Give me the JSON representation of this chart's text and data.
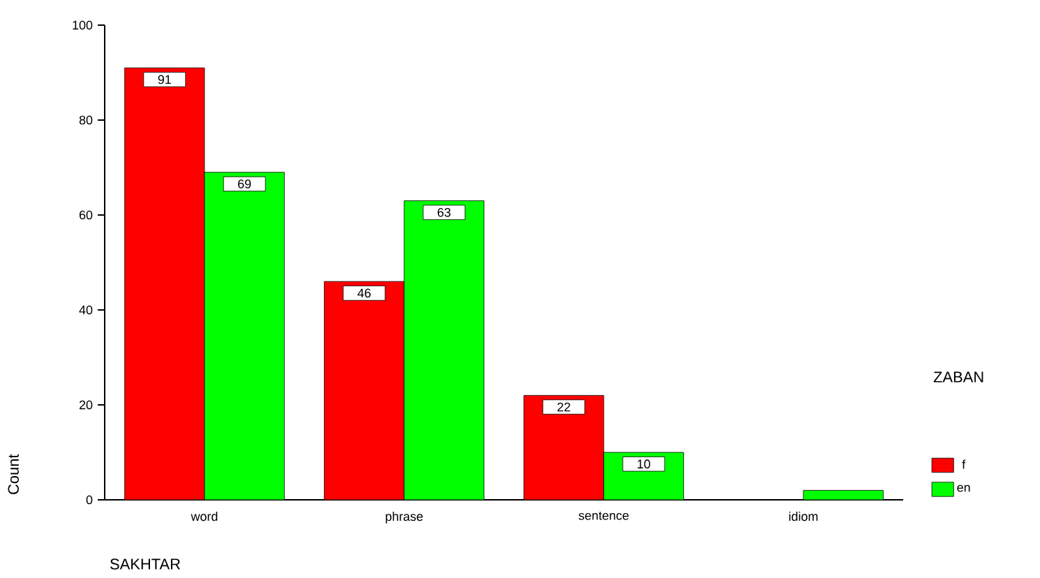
{
  "chart_data": {
    "type": "bar",
    "xlabel": "SAKHTAR",
    "ylabel": "Count",
    "legend_title": "ZABAN",
    "categories": [
      "word",
      "phrase",
      "sentence",
      "idiom"
    ],
    "series": [
      {
        "name": "f",
        "color": "#ff0000",
        "values": [
          91,
          46,
          22,
          null
        ],
        "value_labels": [
          "91",
          "46",
          "22",
          null
        ]
      },
      {
        "name": "en",
        "color": "#00ff00",
        "values": [
          69,
          63,
          10,
          2
        ],
        "value_labels": [
          "69",
          "63",
          "10",
          null
        ]
      }
    ],
    "ylim": [
      0,
      100
    ],
    "yticks": [
      0,
      20,
      40,
      60,
      80,
      100
    ],
    "grid": false,
    "legend": "right"
  }
}
